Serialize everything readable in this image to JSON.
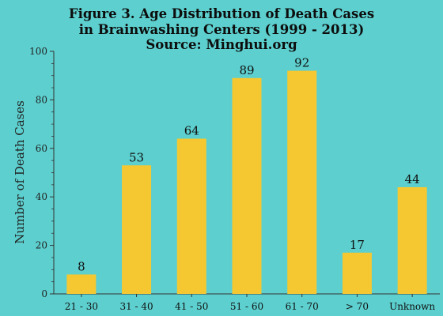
{
  "chart_data": {
    "type": "bar",
    "title_lines": [
      "Figure 3. Age Distribution of Death Cases",
      "in Brainwashing Centers  (1999 - 2013)",
      "Source: Minghui.org"
    ],
    "xlabel": "",
    "ylabel": "Number of Death Cases",
    "categories": [
      "21 - 30",
      "31 - 40",
      "41 - 50",
      "51 - 60",
      "61 - 70",
      "> 70",
      "Unknown"
    ],
    "values": [
      8,
      53,
      64,
      89,
      92,
      17,
      44
    ],
    "ylim": [
      0,
      100
    ],
    "yticks": [
      0,
      20,
      40,
      60,
      80,
      100
    ],
    "grid": false,
    "legend": "none",
    "colors": {
      "background": "#5ccfce",
      "bar": "#f5c832",
      "axis": "#333333",
      "text": "#111111"
    }
  }
}
